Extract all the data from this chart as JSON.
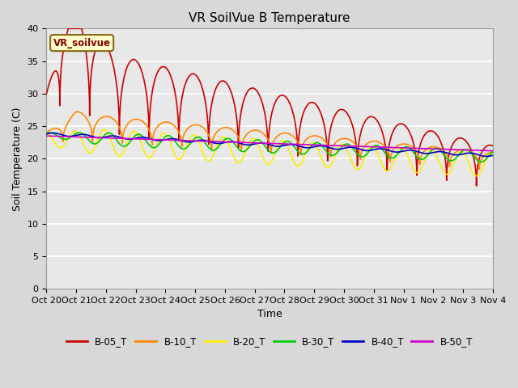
{
  "title": "VR SoilVue B Temperature",
  "ylabel": "Soil Temperature (C)",
  "xlabel": "Time",
  "legend_label": "VR_soilvue",
  "series_names": [
    "B-05_T",
    "B-10_T",
    "B-20_T",
    "B-30_T",
    "B-40_T",
    "B-50_T"
  ],
  "series_colors": [
    "#cc0000",
    "#ff8800",
    "#ffee00",
    "#00cc00",
    "#0000cc",
    "#cc00cc"
  ],
  "ylim": [
    0,
    40
  ],
  "yticks": [
    0,
    5,
    10,
    15,
    20,
    25,
    30,
    35,
    40
  ],
  "xtick_labels": [
    "Oct 20",
    "Oct 21",
    "Oct 22",
    "Oct 23",
    "Oct 24",
    "Oct 25",
    "Oct 26",
    "Oct 27",
    "Oct 28",
    "Oct 29",
    "Oct 30",
    "Oct 31",
    "Nov 1",
    "Nov 2",
    "Nov 3",
    "Nov 4"
  ],
  "plot_bg_color": "#e8e8e8",
  "grid_color": "#ffffff",
  "title_fontsize": 11,
  "axis_fontsize": 9,
  "tick_fontsize": 8
}
